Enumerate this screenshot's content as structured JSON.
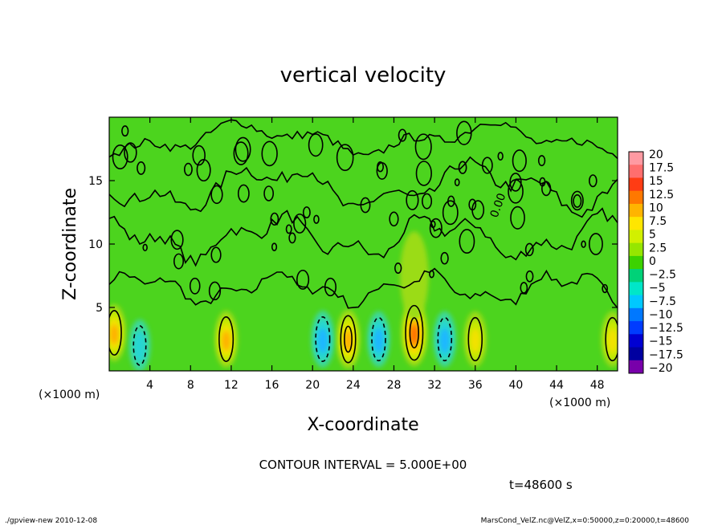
{
  "chart_data": {
    "type": "heatmap",
    "title": "vertical velocity",
    "xlabel": "X-coordinate",
    "ylabel": "Z-coordinate",
    "x_unit": "(×1000 m)",
    "z_unit": "(×1000 m)",
    "xlim": [
      0,
      50
    ],
    "ylim": [
      0,
      20
    ],
    "x_ticks": [
      "4",
      "8",
      "12",
      "16",
      "20",
      "24",
      "28",
      "32",
      "36",
      "40",
      "44",
      "48"
    ],
    "y_ticks": [
      "5",
      "10",
      "15"
    ],
    "contour_interval": "CONTOUR INTERVAL = 5.000E+00",
    "contour_label": "0.00",
    "time_label": "t=48600 s",
    "colorbar": {
      "labels": [
        "20",
        "17.5",
        "15",
        "12.5",
        "10",
        "7.5",
        "5",
        "2.5",
        "0",
        "−2.5",
        "−5",
        "−7.5",
        "−10",
        "−12.5",
        "−15",
        "−17.5",
        "−20"
      ],
      "colors": [
        "#ff9aa2",
        "#ff6e6e",
        "#ff3c14",
        "#ff7800",
        "#ffb400",
        "#ffe600",
        "#d2f000",
        "#96e600",
        "#3cd200",
        "#00d278",
        "#00e6c8",
        "#00c8ff",
        "#0078ff",
        "#003cff",
        "#0000d2",
        "#0000a0",
        "#7800aa"
      ]
    },
    "features": [
      {
        "x": 30,
        "z": 3,
        "peak": 15,
        "sign": "positive"
      },
      {
        "x": 23.5,
        "z": 2.5,
        "peak": 9,
        "sign": "positive"
      },
      {
        "x": 11.5,
        "z": 2.5,
        "peak": 7,
        "sign": "positive"
      },
      {
        "x": 36,
        "z": 2.5,
        "peak": 6,
        "sign": "positive"
      },
      {
        "x": 0.5,
        "z": 3,
        "peak": 7,
        "sign": "positive"
      },
      {
        "x": 49.5,
        "z": 2.5,
        "peak": 6,
        "sign": "positive"
      },
      {
        "x": 21,
        "z": 2.5,
        "peak": -7,
        "sign": "negative"
      },
      {
        "x": 26.5,
        "z": 2.5,
        "peak": -6,
        "sign": "negative"
      },
      {
        "x": 33,
        "z": 2.5,
        "peak": -6,
        "sign": "negative"
      },
      {
        "x": 3,
        "z": 2,
        "peak": -3,
        "sign": "negative"
      }
    ]
  },
  "footer": {
    "left": "./gpview-new   2010-12-08",
    "right": "MarsCond_VelZ.nc@VelZ,x=0:50000,z=0:20000,t=48600"
  }
}
